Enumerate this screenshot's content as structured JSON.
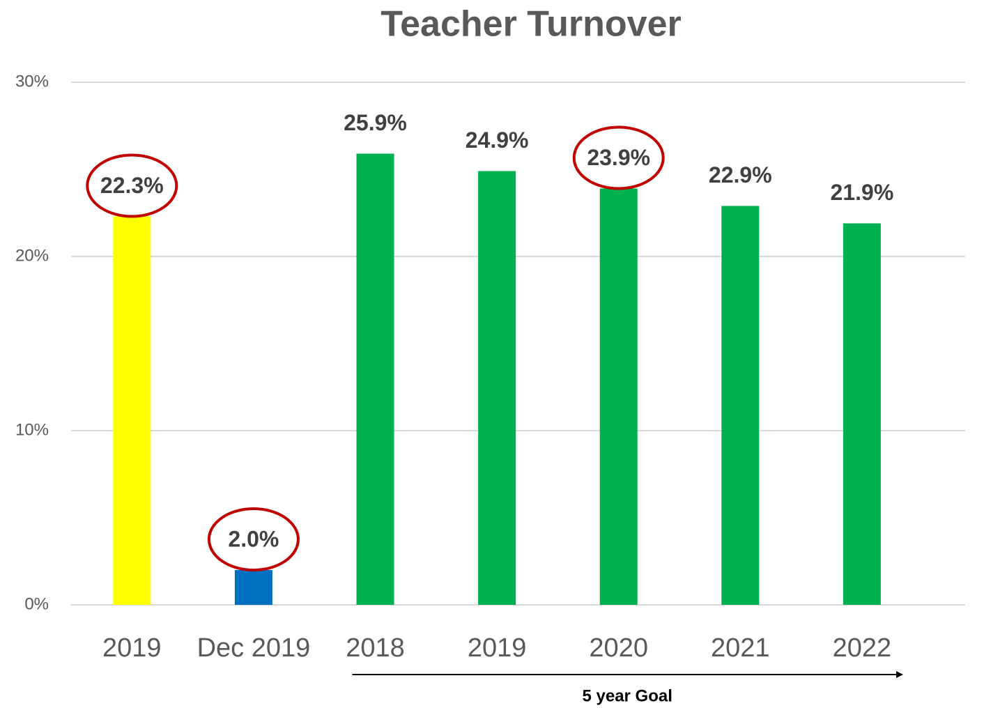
{
  "chart_data": {
    "type": "bar",
    "title": "Teacher Turnover",
    "categories": [
      "2019",
      "Dec 2019",
      "2018",
      "2019",
      "2020",
      "2021",
      "2022"
    ],
    "values": [
      22.3,
      2.0,
      25.9,
      24.9,
      23.9,
      22.9,
      21.9
    ],
    "value_labels": [
      "22.3%",
      "2.0%",
      "25.9%",
      "24.9%",
      "23.9%",
      "22.9%",
      "21.9%"
    ],
    "colors": [
      "#ffff00",
      "#0070c0",
      "#00b050",
      "#00b050",
      "#00b050",
      "#00b050",
      "#00b050"
    ],
    "circled": [
      0,
      1,
      4
    ],
    "circle_color": "#c00000",
    "ylim": [
      0,
      30
    ],
    "yticks": [
      {
        "value": 0,
        "label": "0%"
      },
      {
        "value": 10,
        "label": "10%"
      },
      {
        "value": 20,
        "label": "20%"
      },
      {
        "value": 30,
        "label": "30%"
      }
    ],
    "grid": true,
    "annotation": {
      "text": "5 year Goal",
      "from_category": 2,
      "to_category": 6
    }
  }
}
